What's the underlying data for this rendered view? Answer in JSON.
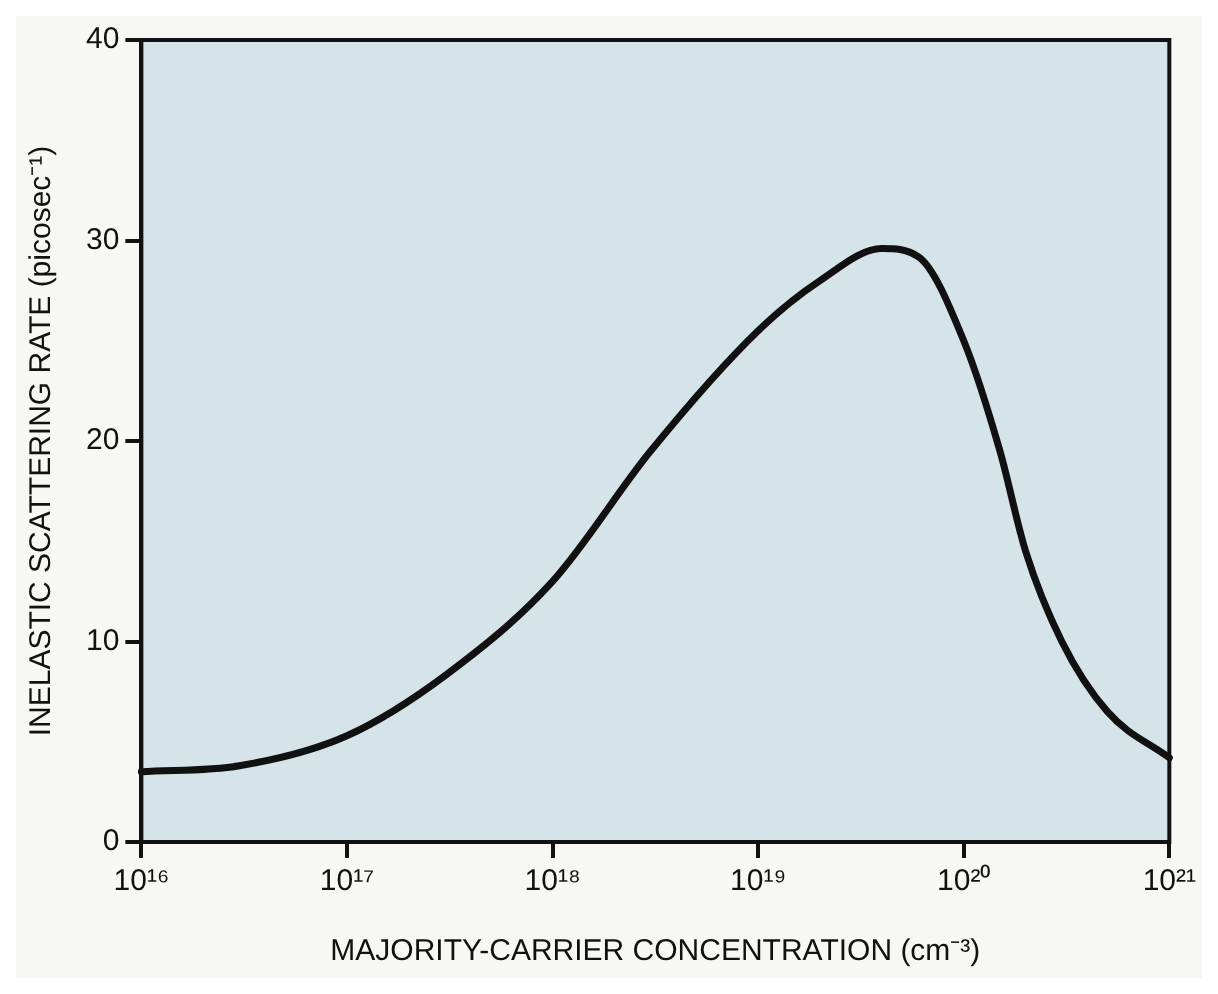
{
  "chart_data": {
    "type": "line",
    "xlabel": "MAJORITY-CARRIER CONCENTRATION (cm⁻³)",
    "ylabel": "INELASTIC SCATTERING RATE (picosec⁻¹)",
    "log": "x",
    "grid": false,
    "legend": false,
    "marker": "none",
    "line_style": "solid",
    "xlim": [
      1e+16,
      1e+21
    ],
    "xticks": [
      {
        "value": 1e+16,
        "label": "10¹⁶"
      },
      {
        "value": 1e+17,
        "label": "10¹⁷"
      },
      {
        "value": 1e+18,
        "label": "10¹⁸"
      },
      {
        "value": 1e+19,
        "label": "10¹⁹"
      },
      {
        "value": 1e+20,
        "label": "10²⁰"
      },
      {
        "value": 1e+21,
        "label": "10²¹"
      }
    ],
    "ylim": [
      0,
      40
    ],
    "yticks": [
      0,
      10,
      20,
      30,
      40
    ],
    "series": [
      {
        "color": "#111111",
        "x": [
          1e+16,
          3e+16,
          1e+17,
          3e+17,
          1e+18,
          3e+18,
          1e+19,
          2e+19,
          4e+19,
          6e+19,
          1e+20,
          1.5e+20,
          2e+20,
          3e+20,
          5e+20,
          1e+21
        ],
        "values": [
          3.5,
          3.8,
          5.3,
          8.3,
          13,
          19.5,
          25.5,
          28,
          29.6,
          29.2,
          25,
          19.5,
          14.5,
          10,
          6.5,
          4.2
        ]
      }
    ]
  }
}
